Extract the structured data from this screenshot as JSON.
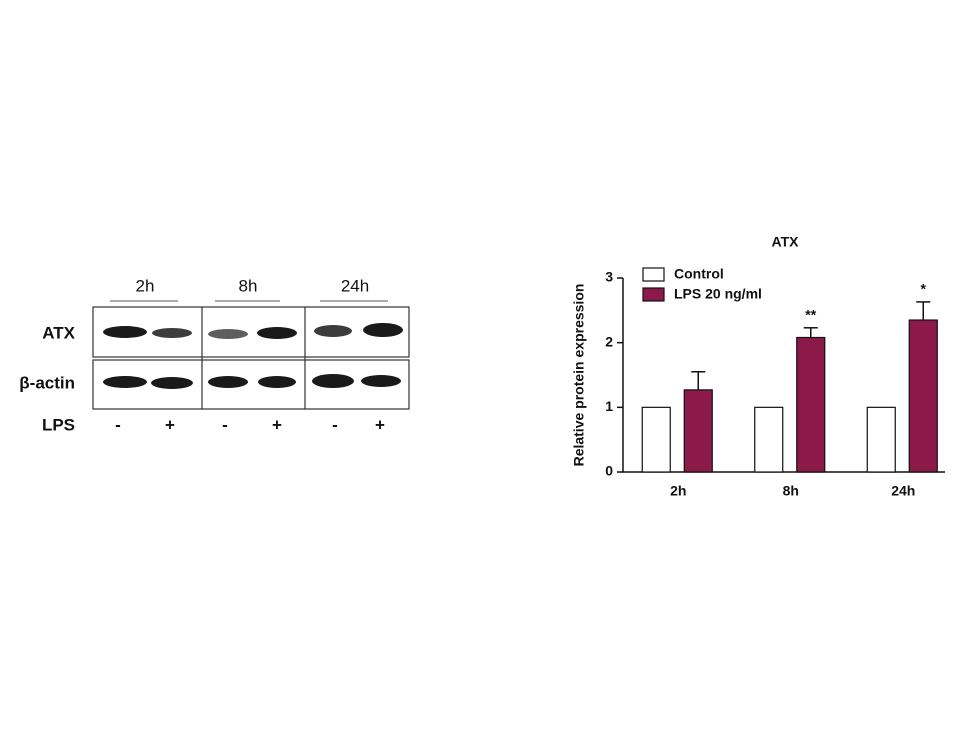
{
  "blot": {
    "timepoints": [
      "2h",
      "8h",
      "24h"
    ],
    "rows": [
      "ATX",
      "β-actin"
    ],
    "treatment": "LPS",
    "lanes": [
      "-",
      "+",
      "-",
      "+",
      "-",
      "+"
    ]
  },
  "chart_data": {
    "type": "bar",
    "title": "ATX",
    "y_label": "Relative protein expression",
    "categories": [
      "2h",
      "8h",
      "24h"
    ],
    "series": [
      {
        "name": "Control",
        "color": "#ffffff",
        "values": [
          1,
          1,
          1
        ]
      },
      {
        "name": "LPS 20 ng/ml",
        "color": "#8b1a4a",
        "values": [
          1.27,
          2.08,
          2.35
        ],
        "errors": [
          0.28,
          0.15,
          0.28
        ],
        "significance": [
          null,
          "**",
          "*"
        ]
      }
    ],
    "ylim": [
      0,
      3
    ],
    "yticks": [
      0,
      1,
      2,
      3
    ]
  }
}
